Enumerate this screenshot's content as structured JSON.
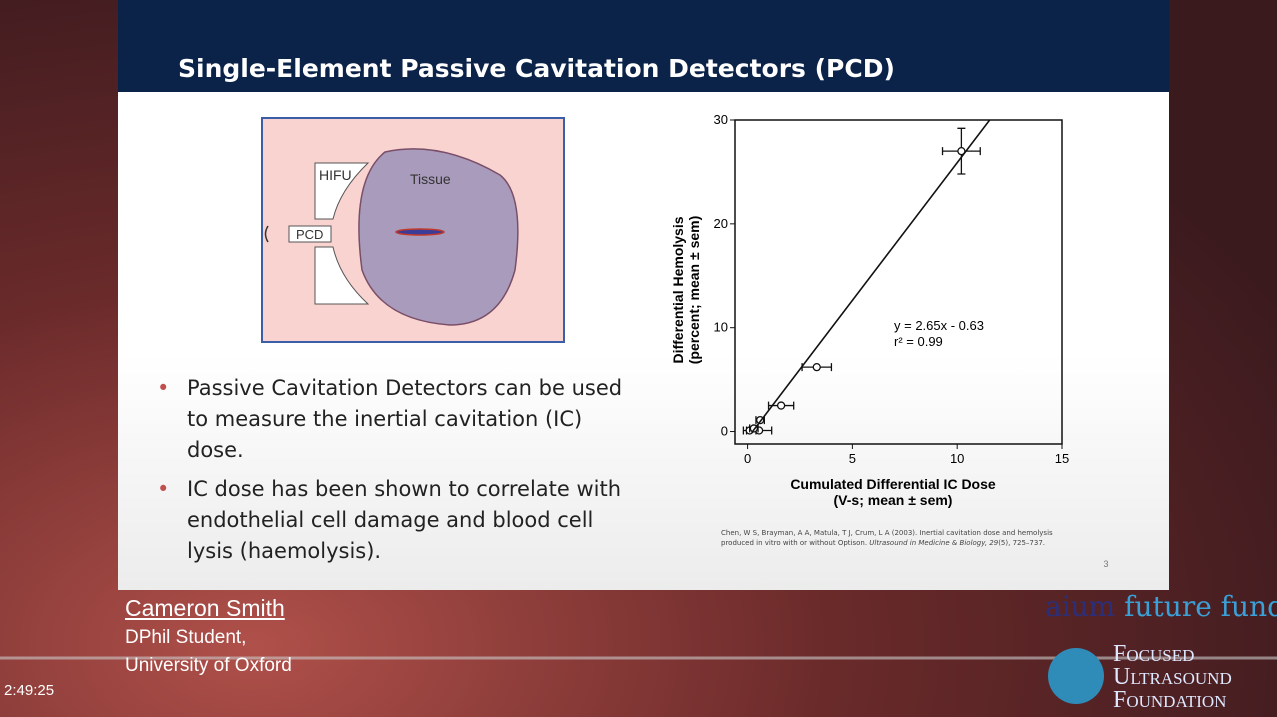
{
  "slide": {
    "title": "Single-Element Passive Cavitation Detectors (PCD)",
    "diagram": {
      "hifu": "HIFU",
      "tissue": "Tissue",
      "pcd": "PCD"
    },
    "bullets": [
      "Passive Cavitation Detectors can be used to measure the inertial cavitation (IC) dose.",
      "IC dose has been shown to correlate with endothelial cell damage and blood cell lysis (haemolysis)."
    ],
    "citation": [
      "Chen, W S, Brayman, A A, Matula, T J, Crum, L A (2003). Inertial cavitation dose and hemolysis produced in vitro with or without Optison. ",
      "Ultrasound in Medicine & Biology, 29",
      "(5), 725–737."
    ],
    "page_number": "3"
  },
  "chart_data": {
    "type": "scatter",
    "xlabel": [
      "Cumulated Differential IC Dose",
      "(V-s; mean ± sem)"
    ],
    "ylabel": [
      "Differential Hemolysis",
      "(percent; mean ± sem)"
    ],
    "annotations": [
      "y = 2.65x - 0.63",
      "r² = 0.99"
    ],
    "xlim": [
      -0.6,
      15
    ],
    "ylim": [
      -1.2,
      30
    ],
    "xticks": [
      0,
      5,
      10,
      15
    ],
    "yticks": [
      0,
      10,
      20,
      30
    ],
    "series": [
      {
        "x": [
          10.2,
          3.3,
          1.6,
          0.6,
          0.55,
          0.1,
          0.3
        ],
        "values": [
          27,
          6.2,
          2.5,
          1.1,
          0.1,
          0.1,
          0.3
        ],
        "x_errors": [
          0.9,
          0.7,
          0.6,
          0.2,
          0.6,
          0.3,
          0.2
        ],
        "y_errors": [
          2.2,
          0,
          0,
          0,
          0,
          0,
          0
        ],
        "color": "#111111"
      },
      {
        "type": "line",
        "x": [
          0.2,
          11.55
        ],
        "values": [
          -0.1,
          30
        ],
        "color": "#111111"
      }
    ]
  },
  "speaker": {
    "name": "Cameron Smith",
    "role": "DPhil Student,",
    "affiliation": "University of Oxford"
  },
  "logos": {
    "aium": [
      "aium",
      "future fund"
    ],
    "fus": [
      "Focused",
      "Ultrasound",
      "Foundation"
    ]
  },
  "player": {
    "time": "2:49:25"
  }
}
